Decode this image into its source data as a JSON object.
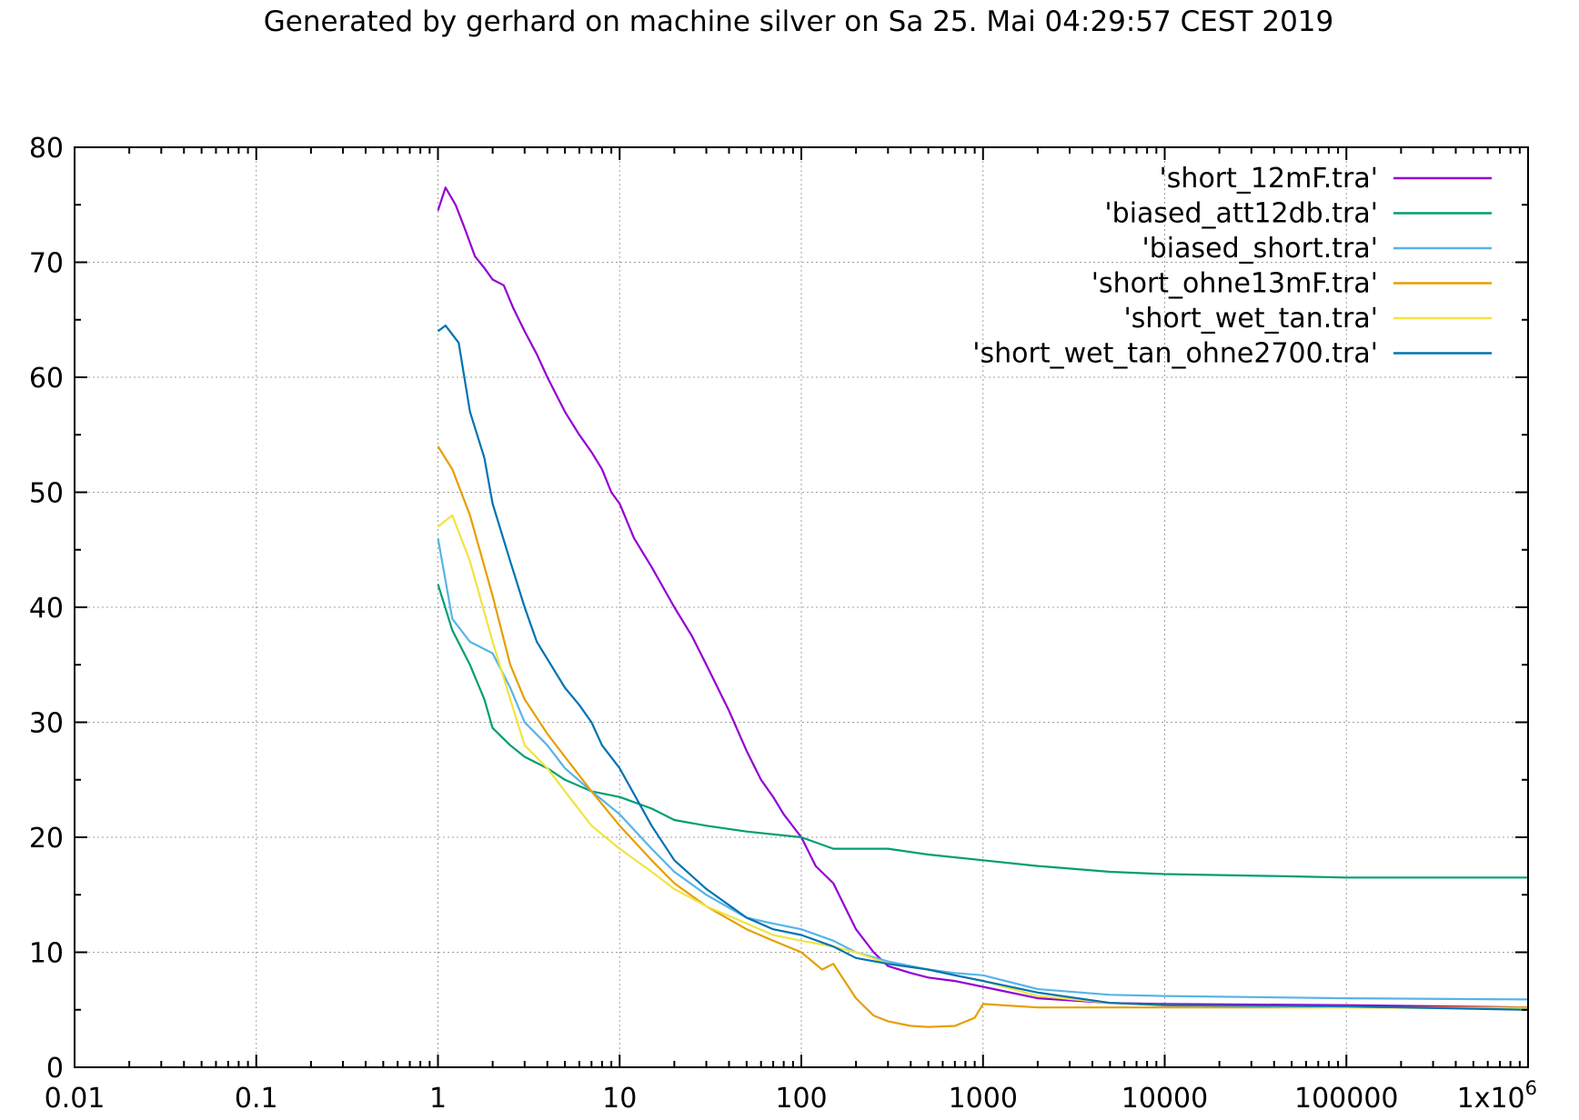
{
  "chart_data": {
    "type": "line",
    "title": "Generated by gerhard on machine silver on Sa 25. Mai 04:29:57 CEST 2019",
    "xlabel": "",
    "ylabel": "",
    "xscale": "log",
    "xlim": [
      0.01,
      1000000
    ],
    "ylim": [
      0,
      80
    ],
    "grid": true,
    "legend_position": "top-right",
    "x_ticks": [
      {
        "value": 0.01,
        "label": "0.01"
      },
      {
        "value": 0.1,
        "label": "0.1"
      },
      {
        "value": 1,
        "label": "1"
      },
      {
        "value": 10,
        "label": "10"
      },
      {
        "value": 100,
        "label": "100"
      },
      {
        "value": 1000,
        "label": "1000"
      },
      {
        "value": 10000,
        "label": "10000"
      },
      {
        "value": 100000,
        "label": "100000"
      },
      {
        "value": 1000000,
        "label": "1x10",
        "sup": "6"
      }
    ],
    "y_ticks": [
      {
        "value": 0,
        "label": "0"
      },
      {
        "value": 10,
        "label": "10"
      },
      {
        "value": 20,
        "label": "20"
      },
      {
        "value": 30,
        "label": "30"
      },
      {
        "value": 40,
        "label": "40"
      },
      {
        "value": 50,
        "label": "50"
      },
      {
        "value": 60,
        "label": "60"
      },
      {
        "value": 70,
        "label": "70"
      },
      {
        "value": 80,
        "label": "80"
      }
    ],
    "series": [
      {
        "name": "'short_12mF.tra'",
        "color": "#9400d3",
        "points": [
          [
            1,
            74.5
          ],
          [
            1.1,
            76.5
          ],
          [
            1.25,
            75
          ],
          [
            1.4,
            73
          ],
          [
            1.6,
            70.5
          ],
          [
            1.8,
            69.5
          ],
          [
            2,
            68.5
          ],
          [
            2.3,
            68
          ],
          [
            2.6,
            66
          ],
          [
            3,
            64
          ],
          [
            3.5,
            62
          ],
          [
            4,
            60
          ],
          [
            5,
            57
          ],
          [
            6,
            55
          ],
          [
            7,
            53.5
          ],
          [
            8,
            52
          ],
          [
            9,
            50
          ],
          [
            10,
            49
          ],
          [
            12,
            46
          ],
          [
            15,
            43.5
          ],
          [
            20,
            40
          ],
          [
            25,
            37.5
          ],
          [
            30,
            35
          ],
          [
            40,
            31
          ],
          [
            50,
            27.5
          ],
          [
            60,
            25
          ],
          [
            70,
            23.5
          ],
          [
            80,
            22
          ],
          [
            100,
            20
          ],
          [
            120,
            17.5
          ],
          [
            150,
            16
          ],
          [
            200,
            12
          ],
          [
            250,
            10
          ],
          [
            300,
            8.8
          ],
          [
            400,
            8.2
          ],
          [
            500,
            7.8
          ],
          [
            700,
            7.5
          ],
          [
            1000,
            7
          ],
          [
            2000,
            6
          ],
          [
            5000,
            5.6
          ],
          [
            10000,
            5.5
          ],
          [
            100000,
            5.4
          ],
          [
            1000000,
            5.2
          ]
        ]
      },
      {
        "name": "'biased_att12db.tra'",
        "color": "#009e73",
        "points": [
          [
            1,
            42
          ],
          [
            1.2,
            38
          ],
          [
            1.5,
            35
          ],
          [
            1.8,
            32
          ],
          [
            2,
            29.5
          ],
          [
            2.5,
            28
          ],
          [
            3,
            27
          ],
          [
            4,
            26
          ],
          [
            5,
            25
          ],
          [
            7,
            24
          ],
          [
            10,
            23.5
          ],
          [
            15,
            22.5
          ],
          [
            20,
            21.5
          ],
          [
            30,
            21
          ],
          [
            50,
            20.5
          ],
          [
            100,
            20
          ],
          [
            150,
            19
          ],
          [
            200,
            19
          ],
          [
            300,
            19
          ],
          [
            500,
            18.5
          ],
          [
            1000,
            18
          ],
          [
            2000,
            17.5
          ],
          [
            5000,
            17
          ],
          [
            10000,
            16.8
          ],
          [
            50000,
            16.6
          ],
          [
            100000,
            16.5
          ],
          [
            1000000,
            16.5
          ]
        ]
      },
      {
        "name": "'biased_short.tra'",
        "color": "#56b4e9",
        "points": [
          [
            1,
            46
          ],
          [
            1.2,
            39
          ],
          [
            1.5,
            37
          ],
          [
            2,
            36
          ],
          [
            2.5,
            33
          ],
          [
            3,
            30
          ],
          [
            4,
            28
          ],
          [
            5,
            26
          ],
          [
            7,
            24
          ],
          [
            10,
            22
          ],
          [
            15,
            19
          ],
          [
            20,
            17
          ],
          [
            30,
            15
          ],
          [
            50,
            13
          ],
          [
            70,
            12.5
          ],
          [
            100,
            12
          ],
          [
            150,
            11
          ],
          [
            200,
            10
          ],
          [
            300,
            9.2
          ],
          [
            500,
            8.5
          ],
          [
            700,
            8.2
          ],
          [
            1000,
            8
          ],
          [
            2000,
            6.8
          ],
          [
            5000,
            6.3
          ],
          [
            10000,
            6.2
          ],
          [
            100000,
            6
          ],
          [
            1000000,
            5.9
          ]
        ]
      },
      {
        "name": "'short_ohne13mF.tra'",
        "color": "#e69f00",
        "points": [
          [
            1,
            54
          ],
          [
            1.2,
            52
          ],
          [
            1.5,
            48
          ],
          [
            2,
            41
          ],
          [
            2.5,
            35
          ],
          [
            3,
            32
          ],
          [
            4,
            29
          ],
          [
            5,
            27
          ],
          [
            7,
            24
          ],
          [
            10,
            21
          ],
          [
            15,
            18
          ],
          [
            20,
            16
          ],
          [
            30,
            14
          ],
          [
            50,
            12
          ],
          [
            70,
            11
          ],
          [
            100,
            10
          ],
          [
            130,
            8.5
          ],
          [
            150,
            9
          ],
          [
            200,
            6
          ],
          [
            250,
            4.5
          ],
          [
            300,
            4
          ],
          [
            400,
            3.6
          ],
          [
            500,
            3.5
          ],
          [
            700,
            3.6
          ],
          [
            900,
            4.3
          ],
          [
            1000,
            5.5
          ],
          [
            2000,
            5.2
          ],
          [
            5000,
            5.2
          ],
          [
            10000,
            5.2
          ],
          [
            100000,
            5.2
          ],
          [
            1000000,
            5.2
          ]
        ]
      },
      {
        "name": "'short_wet_tan.tra'",
        "color": "#f0e442",
        "points": [
          [
            1,
            47
          ],
          [
            1.2,
            48
          ],
          [
            1.5,
            44
          ],
          [
            2,
            37
          ],
          [
            2.5,
            32
          ],
          [
            3,
            28
          ],
          [
            4,
            26
          ],
          [
            5,
            24
          ],
          [
            7,
            21
          ],
          [
            10,
            19
          ],
          [
            15,
            17
          ],
          [
            20,
            15.5
          ],
          [
            30,
            14
          ],
          [
            50,
            12.5
          ],
          [
            70,
            11.5
          ],
          [
            100,
            11
          ],
          [
            150,
            10.5
          ],
          [
            200,
            10
          ],
          [
            300,
            9
          ],
          [
            500,
            8.5
          ],
          [
            700,
            8
          ],
          [
            1000,
            7.5
          ],
          [
            2000,
            6.2
          ],
          [
            5000,
            5.6
          ],
          [
            10000,
            5.4
          ],
          [
            100000,
            5.2
          ],
          [
            1000000,
            5.1
          ]
        ]
      },
      {
        "name": "'short_wet_tan_ohne2700.tra'",
        "color": "#0072b2",
        "points": [
          [
            1,
            64
          ],
          [
            1.1,
            64.5
          ],
          [
            1.3,
            63
          ],
          [
            1.5,
            57
          ],
          [
            1.8,
            53
          ],
          [
            2,
            49
          ],
          [
            2.5,
            44
          ],
          [
            3,
            40
          ],
          [
            3.5,
            37
          ],
          [
            4,
            35.5
          ],
          [
            5,
            33
          ],
          [
            6,
            31.5
          ],
          [
            7,
            30
          ],
          [
            8,
            28
          ],
          [
            10,
            26
          ],
          [
            15,
            21
          ],
          [
            20,
            18
          ],
          [
            30,
            15.5
          ],
          [
            50,
            13
          ],
          [
            70,
            12
          ],
          [
            100,
            11.5
          ],
          [
            150,
            10.5
          ],
          [
            200,
            9.5
          ],
          [
            300,
            9
          ],
          [
            500,
            8.5
          ],
          [
            700,
            8
          ],
          [
            1000,
            7.5
          ],
          [
            2000,
            6.5
          ],
          [
            5000,
            5.6
          ],
          [
            10000,
            5.4
          ],
          [
            100000,
            5.3
          ],
          [
            1000000,
            5
          ]
        ]
      }
    ]
  }
}
